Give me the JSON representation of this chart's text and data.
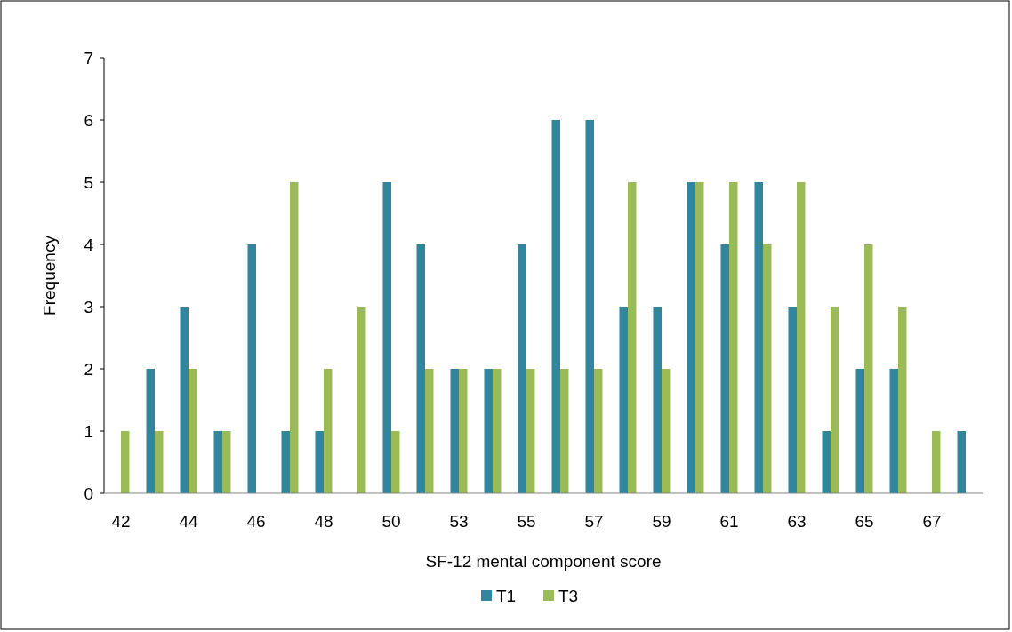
{
  "chart_data": {
    "type": "bar",
    "xlabel": "SF-12 mental component score",
    "ylabel": "Frequency",
    "categories": [
      "42",
      null,
      "44",
      null,
      "46",
      null,
      "48",
      null,
      "50",
      null,
      "53",
      null,
      "55",
      null,
      "57",
      null,
      "59",
      null,
      "61",
      null,
      "63",
      null,
      "65",
      null,
      "67",
      null
    ],
    "series": [
      {
        "name": "T1",
        "color": "#31859c",
        "values": [
          0,
          2,
          3,
          1,
          4,
          1,
          1,
          0,
          5,
          4,
          2,
          2,
          4,
          6,
          6,
          3,
          3,
          5,
          4,
          5,
          3,
          1,
          2,
          2,
          0,
          1
        ]
      },
      {
        "name": "T3",
        "color": "#9bbb59",
        "values": [
          1,
          1,
          2,
          1,
          0,
          5,
          2,
          3,
          1,
          2,
          2,
          2,
          2,
          2,
          2,
          5,
          2,
          5,
          5,
          4,
          5,
          3,
          4,
          3,
          1,
          0
        ]
      }
    ],
    "ylim": [
      0,
      7
    ],
    "yticks": [
      0,
      1,
      2,
      3,
      4,
      5,
      6,
      7
    ],
    "grid": false,
    "legend": "bottom"
  }
}
